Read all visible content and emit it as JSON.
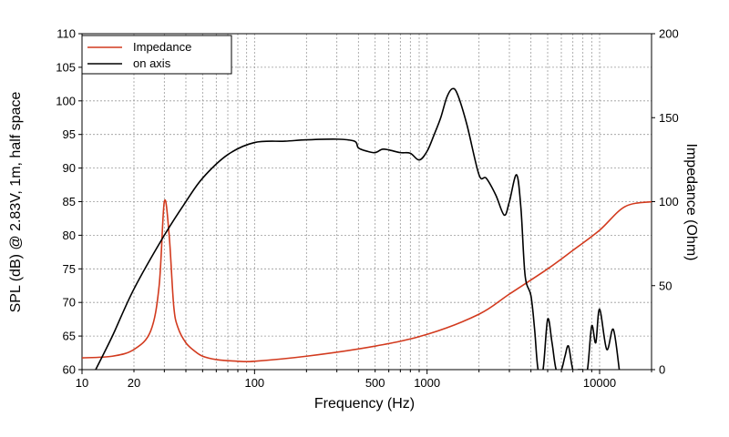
{
  "chart_data": {
    "type": "line",
    "title": "",
    "xlabel": "Frequency (Hz)",
    "ylabel": "SPL (dB) @ 2.83V, 1m, half space",
    "y2label": "Impedance (Ohm)",
    "xscale": "log",
    "xlim": [
      10,
      20000
    ],
    "ylim": [
      60,
      110
    ],
    "y2lim": [
      0,
      200
    ],
    "grid": true,
    "legend_position": "top-left",
    "x_tick_labels": [
      "10",
      "20",
      "100",
      "500",
      "1000",
      "10000"
    ],
    "y_tick_labels": [
      "60",
      "65",
      "70",
      "75",
      "80",
      "85",
      "90",
      "95",
      "100",
      "105",
      "110"
    ],
    "y2_tick_labels": [
      "0",
      "50",
      "100",
      "150",
      "200"
    ],
    "series": [
      {
        "name": "Impedance",
        "axis": "right",
        "color": "#d23a1e",
        "x": [
          10,
          15,
          20,
          25,
          28,
          30,
          32,
          34,
          36,
          40,
          45,
          50,
          60,
          80,
          100,
          200,
          500,
          1000,
          2000,
          3000,
          5000,
          7000,
          10000,
          14000,
          20000
        ],
        "y": [
          7,
          8,
          12,
          23,
          50,
          100,
          80,
          38,
          25,
          16,
          11,
          8,
          6,
          5,
          5,
          8,
          14,
          21,
          33,
          45,
          60,
          71,
          83,
          97,
          100
        ]
      },
      {
        "name": "on axis",
        "axis": "left",
        "color": "#000000",
        "x": [
          12,
          15,
          20,
          30,
          40,
          50,
          70,
          100,
          150,
          200,
          300,
          380,
          400,
          450,
          500,
          550,
          600,
          700,
          800,
          900,
          1000,
          1100,
          1200,
          1300,
          1400,
          1500,
          1700,
          2000,
          2200,
          2500,
          2800,
          3000,
          3300,
          3500,
          3700,
          4000,
          4200,
          4400,
          4700,
          5000,
          5300,
          5600,
          6000,
          6300,
          6600,
          7000,
          7500,
          8000,
          8500,
          9000,
          9500,
          10000,
          11000,
          12000,
          13000
        ],
        "y": [
          60,
          65,
          72,
          80,
          85,
          88.5,
          92,
          93.8,
          94,
          94.2,
          94.3,
          94,
          93,
          92.5,
          92.3,
          92.8,
          92.7,
          92.3,
          92.2,
          91.2,
          92.5,
          95,
          97.5,
          100.5,
          101.8,
          101,
          96.5,
          89,
          88.5,
          86,
          83,
          85,
          89,
          84,
          74,
          71,
          66,
          60,
          60,
          67.5,
          64,
          60,
          60,
          62,
          63.5,
          60,
          60,
          60,
          60,
          66.5,
          64,
          69,
          63,
          66,
          60
        ]
      }
    ],
    "colors": {
      "impedance": "#d23a1e",
      "spl": "#000000",
      "grid": "#9a9a9a"
    }
  }
}
